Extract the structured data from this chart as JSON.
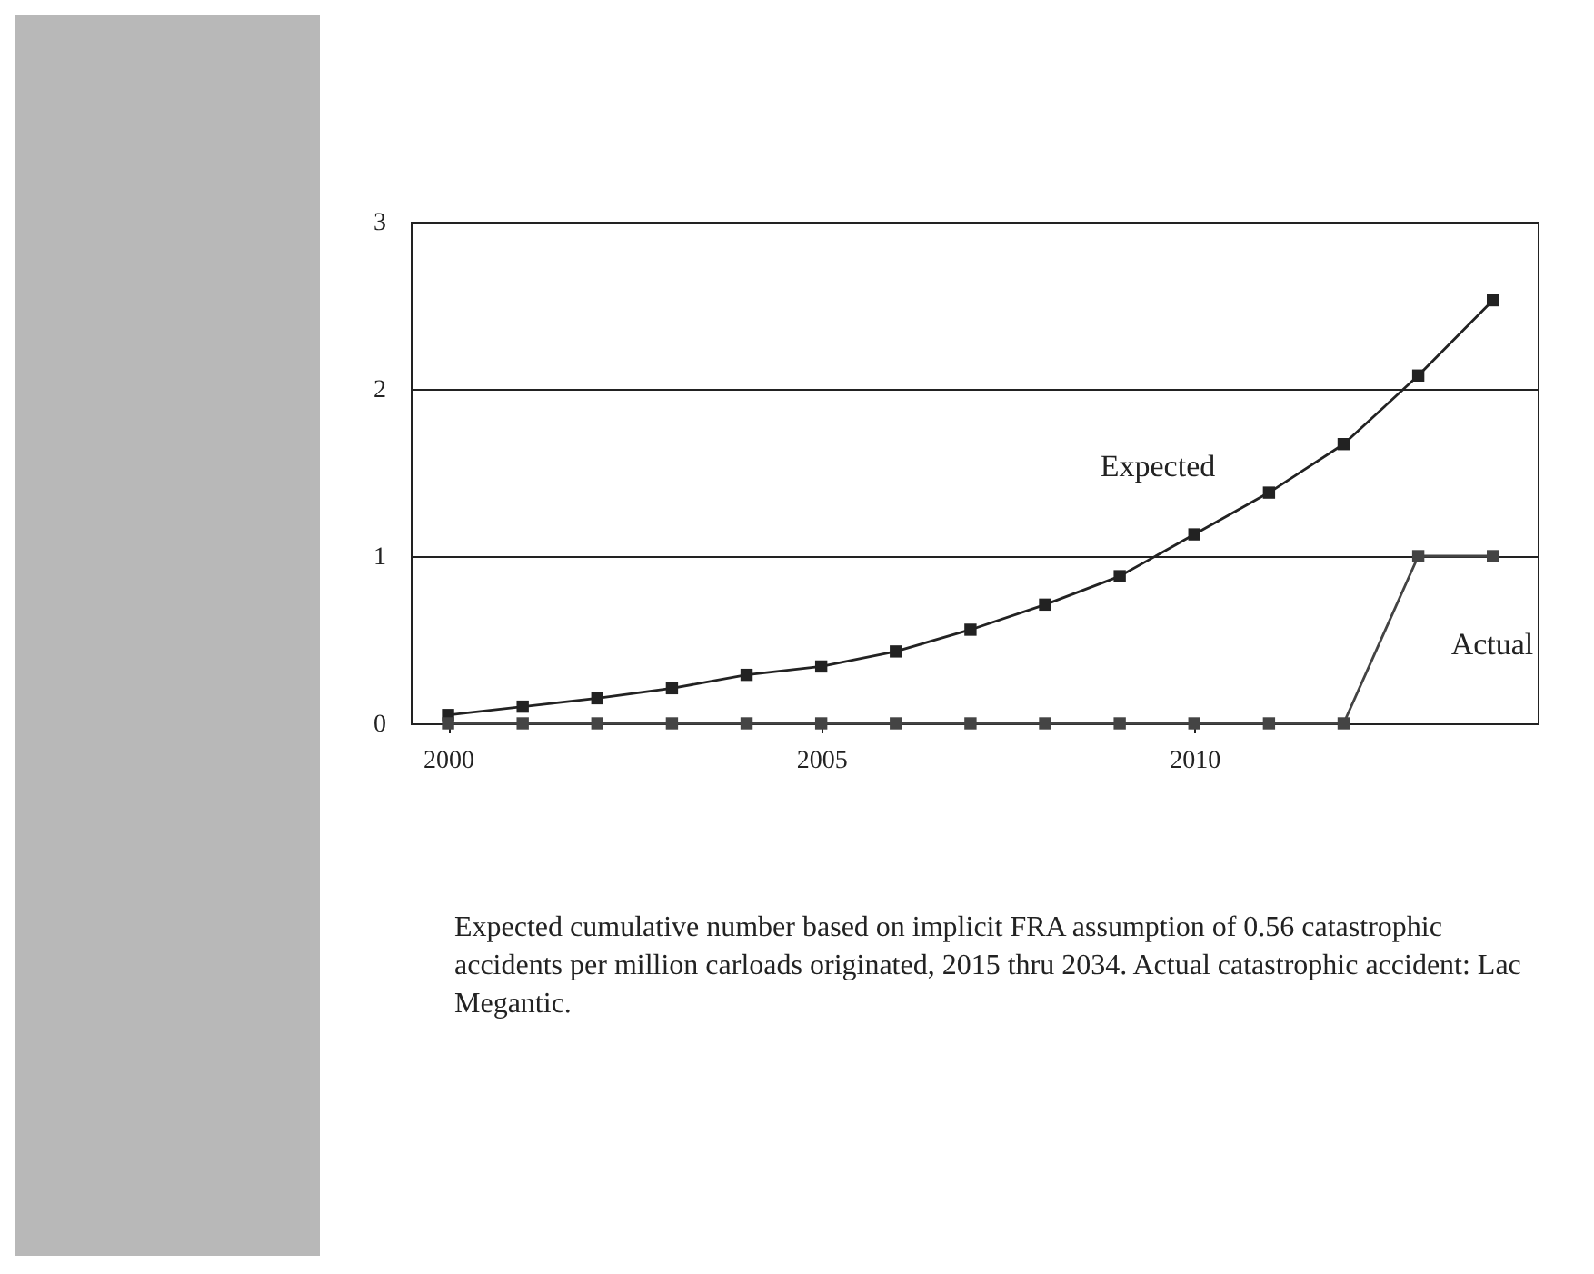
{
  "chart_data": {
    "type": "line",
    "x": [
      2000,
      2001,
      2002,
      2003,
      2004,
      2005,
      2006,
      2007,
      2008,
      2009,
      2010,
      2011,
      2012,
      2013,
      2014
    ],
    "series": [
      {
        "name": "Expected",
        "color": "#222222",
        "values": [
          0.05,
          0.1,
          0.15,
          0.21,
          0.29,
          0.34,
          0.43,
          0.56,
          0.71,
          0.88,
          1.13,
          1.38,
          1.67,
          2.08,
          2.53
        ]
      },
      {
        "name": "Actual",
        "color": "#444444",
        "values": [
          0,
          0,
          0,
          0,
          0,
          0,
          0,
          0,
          0,
          0,
          0,
          0,
          0,
          1,
          1
        ]
      }
    ],
    "xlim": [
      1999.5,
      2014.6
    ],
    "xticks": [
      2000,
      2005,
      2010
    ],
    "ylim": [
      0,
      3
    ],
    "yticks": [
      0,
      1,
      2,
      3
    ],
    "grid": "y",
    "marker": "square",
    "line_style": "solid",
    "legend": false,
    "annotations": [
      "Expected cumulative number based on implicit FRA assumption of 0.56 catastrophic accidents per million carloads originated, 2015 thru 2034. Actual catastrophic accident: Lac Megantic."
    ]
  }
}
